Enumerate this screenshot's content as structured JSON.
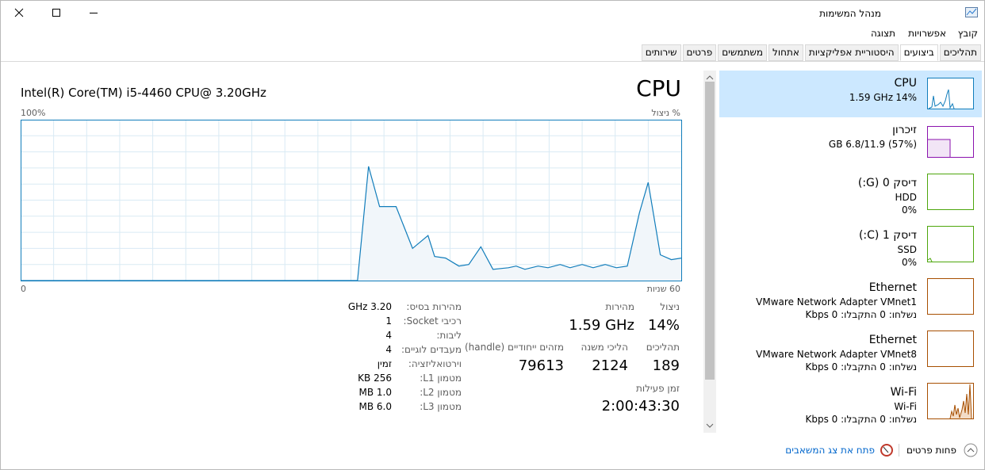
{
  "window": {
    "title": "מנהל המשימות"
  },
  "menu": [
    "קובץ",
    "אפשרויות",
    "תצוגה"
  ],
  "tabs": [
    "תהליכים",
    "ביצועים",
    "היסטוריית אפליקציות",
    "אתחול",
    "משתמשים",
    "פרטים",
    "שירותים"
  ],
  "main": {
    "title": "CPU",
    "processor": "Intel(R) Core(TM) i5-4460 CPU@ 3.20GHz",
    "graph": {
      "y_max_label": "100%",
      "y_label": "% ניצול",
      "x_start_label": "0",
      "x_end_label": "60 שניות",
      "xlim": [
        0,
        60
      ],
      "ylim": [
        0,
        100
      ],
      "x": [
        0,
        30.6,
        31.6,
        32.6,
        34.1,
        35.6,
        37.0,
        37.6,
        38.6,
        39.8,
        40.7,
        41.8,
        42.9,
        44.3,
        45.0,
        45.8,
        47.0,
        47.9,
        49.0,
        49.9,
        51.0,
        52.0,
        53.1,
        54.1,
        55.1,
        56.2,
        57.0,
        58.1,
        59.1,
        60
      ],
      "values": [
        0,
        0,
        71,
        46,
        46,
        20,
        28,
        15,
        14,
        9,
        10,
        21,
        7,
        8,
        9,
        7,
        9,
        8,
        10,
        8,
        10,
        8,
        10,
        8,
        9,
        42,
        61,
        16,
        13,
        14
      ]
    },
    "stats": {
      "utilization": {
        "label": "ניצול",
        "value": "14%"
      },
      "speed": {
        "label": "מהירות",
        "value": "1.59 GHz"
      },
      "processes": {
        "label": "תהליכים",
        "value": "189"
      },
      "threads": {
        "label": "הליכי משנה",
        "value": "2124"
      },
      "handles": {
        "label": "מזהים ייחודיים (handle)",
        "value": "79613"
      },
      "uptime": {
        "label": "זמן פעילות",
        "value": "2:00:43:30"
      }
    },
    "details": [
      {
        "label": "מהירות בסיס:",
        "value": "3.20 GHz"
      },
      {
        "label": "רכיבי Socket:",
        "value": "1"
      },
      {
        "label": "ליבות:",
        "value": "4"
      },
      {
        "label": "מעבדים לוגיים:",
        "value": "4"
      },
      {
        "label": "וירטואליזציה:",
        "value": "זמין"
      },
      {
        "label": "מטמון L1:",
        "value": "256 KB"
      },
      {
        "label": "מטמון L2:",
        "value": "1.0 MB"
      },
      {
        "label": "מטמון L3:",
        "value": "6.0 MB"
      }
    ]
  },
  "sidebar": [
    {
      "title": "CPU",
      "speed": "1.59 GHz",
      "util": "14%"
    },
    {
      "title": "זיכרון",
      "lines": [
        "(57%) 6.8/11.9 GB"
      ]
    },
    {
      "title": "דיסק 0 (G:)",
      "lines": [
        "HDD",
        "0%"
      ]
    },
    {
      "title": "דיסק 1 (C:)",
      "lines": [
        "SSD",
        "0%"
      ]
    },
    {
      "title": "Ethernet",
      "lines": [
        "VMware Network Adapter VMnet1",
        "נשלחו: 0 התקבלו: 0 Kbps"
      ]
    },
    {
      "title": "Ethernet",
      "lines": [
        "VMware Network Adapter VMnet8",
        "נשלחו: 0 התקבלו: 0 Kbps"
      ]
    },
    {
      "title": "Wi-Fi",
      "lines": [
        "Wi-Fi",
        "נשלחו: 0 התקבלו: 0 Kbps"
      ]
    }
  ],
  "footer": {
    "fewer_details": "פחות פרטים",
    "open_monitor": "פתח את צג המשאבים"
  }
}
